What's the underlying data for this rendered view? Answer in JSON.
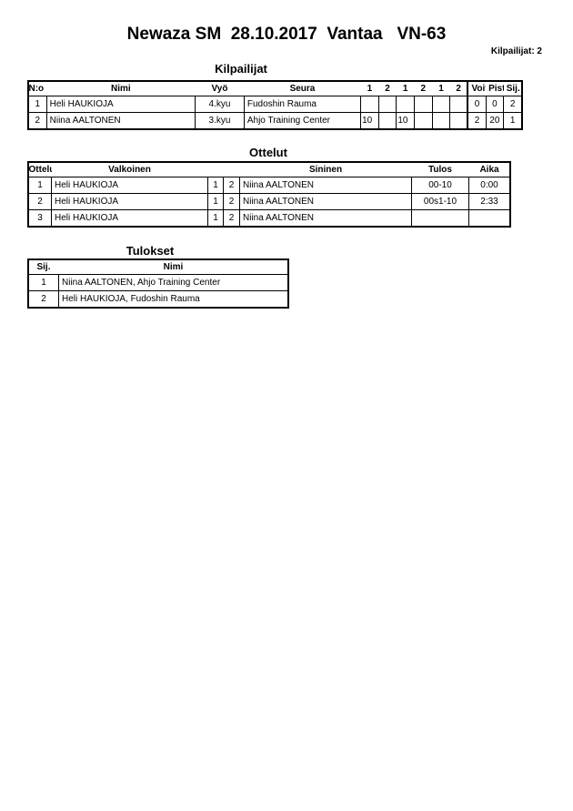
{
  "header": {
    "title": "Newaza SM  28.10.2017  Vantaa   VN-63",
    "competitors_count": "Kilpailijat: 2"
  },
  "kilpailijat": {
    "title": "Kilpailijat",
    "columns": [
      "N:o",
      "Nimi",
      "Vyö",
      "Seura",
      "1",
      "2",
      "1",
      "2",
      "1",
      "2",
      "Voit.",
      "Pist.",
      "Sij."
    ],
    "rows": [
      {
        "no": "1",
        "name": "Heli HAUKIOJA",
        "belt": "4.kyu",
        "club": "Fudoshin Rauma",
        "scores": [
          "",
          "",
          "",
          "",
          "",
          ""
        ],
        "wins": "0",
        "points": "0",
        "place": "2"
      },
      {
        "no": "2",
        "name": "Niina AALTONEN",
        "belt": "3.kyu",
        "club": "Ahjo Training Center",
        "scores": [
          "10",
          "",
          "10",
          "",
          "",
          ""
        ],
        "wins": "2",
        "points": "20",
        "place": "1"
      }
    ]
  },
  "ottelut": {
    "title": "Ottelut",
    "columns": [
      "Ottelu",
      "Valkoinen",
      "Sininen",
      "Tulos",
      "Aika"
    ],
    "rows": [
      {
        "no": "1",
        "white": "Heli HAUKIOJA",
        "w": "1",
        "b": "2",
        "blue": "Niina AALTONEN",
        "result": "00-10",
        "time": "0:00"
      },
      {
        "no": "2",
        "white": "Heli HAUKIOJA",
        "w": "1",
        "b": "2",
        "blue": "Niina AALTONEN",
        "result": "00s1-10",
        "time": "2:33"
      },
      {
        "no": "3",
        "white": "Heli HAUKIOJA",
        "w": "1",
        "b": "2",
        "blue": "Niina AALTONEN",
        "result": "",
        "time": ""
      }
    ]
  },
  "tulokset": {
    "title": "Tulokset",
    "columns": [
      "Sij.",
      "Nimi"
    ],
    "rows": [
      {
        "place": "1",
        "name": "Niina AALTONEN, Ahjo Training Center"
      },
      {
        "place": "2",
        "name": "Heli HAUKIOJA, Fudoshin Rauma"
      }
    ]
  }
}
